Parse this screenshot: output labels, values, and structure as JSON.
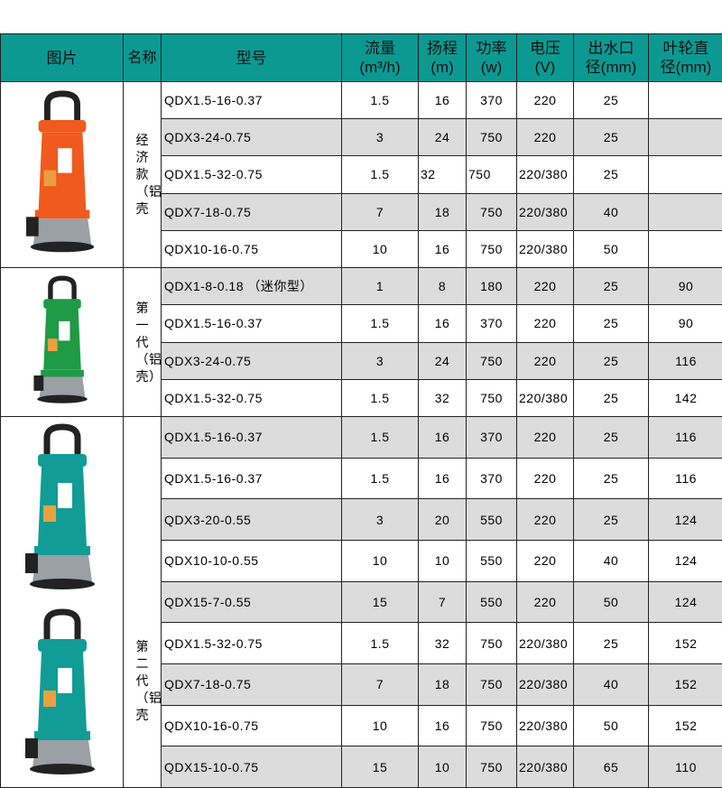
{
  "header": {
    "image": "图片",
    "name": "名称",
    "model": "型号",
    "flow": "流量",
    "flow_unit": "(m³/h)",
    "head": "扬程",
    "head_unit": "(m)",
    "power": "功率",
    "power_unit": "(w)",
    "voltage": "电压",
    "voltage_unit": "(V)",
    "outlet": "出水口",
    "outlet_unit": "径(mm)",
    "impeller": "叶轮直",
    "impeller_unit": "径(mm)"
  },
  "groups": [
    {
      "name": "经济款（铝壳",
      "pump_color": "#f05a1e",
      "rows": [
        [
          "QDX1.5-16-0.37",
          "1.5",
          "16",
          "370",
          "220",
          "25",
          ""
        ],
        [
          "QDX3-24-0.75",
          "3",
          "24",
          "750",
          "220",
          "25",
          ""
        ],
        [
          "QDX1.5-32-0.75",
          "1.5",
          "32",
          "750",
          "220/380",
          "25",
          ""
        ],
        [
          "QDX7-18-0.75",
          "7",
          "18",
          "750",
          "220/380",
          "40",
          ""
        ],
        [
          "QDX10-16-0.75",
          "10",
          "16",
          "750",
          "220/380",
          "50",
          ""
        ]
      ]
    },
    {
      "name": "第一代（铝壳）",
      "pump_color": "#1f9a45",
      "rows": [
        [
          "QDX1-8-0.18 （迷你型）",
          "1",
          "8",
          "180",
          "220",
          "25",
          "90"
        ],
        [
          "QDX1.5-16-0.37",
          "1.5",
          "16",
          "370",
          "220",
          "25",
          "90"
        ],
        [
          "QDX3-24-0.75",
          "3",
          "24",
          "750",
          "220",
          "25",
          "116"
        ],
        [
          "QDX1.5-32-0.75",
          "1.5",
          "32",
          "750",
          "220/380",
          "25",
          "142"
        ]
      ]
    },
    {
      "name": "第二代（铝壳",
      "pump_color": "#129c96",
      "rows": [
        [
          "QDX1.5-16-0.37",
          "1.5",
          "16",
          "370",
          "220",
          "25",
          "116"
        ],
        [
          "QDX1.5-16-0.37",
          "1.5",
          "16",
          "370",
          "220",
          "25",
          "116"
        ],
        [
          "QDX3-20-0.55",
          "3",
          "20",
          "550",
          "220",
          "25",
          "124"
        ],
        [
          "QDX10-10-0.55",
          "10",
          "10",
          "550",
          "220",
          "40",
          "124"
        ],
        [
          "QDX15-7-0.55",
          "15",
          "7",
          "550",
          "220",
          "50",
          "124"
        ],
        [
          "QDX1.5-32-0.75",
          "1.5",
          "32",
          "750",
          "220/380",
          "25",
          "152"
        ],
        [
          "QDX7-18-0.75",
          "7",
          "18",
          "750",
          "220/380",
          "40",
          "152"
        ],
        [
          "QDX10-16-0.75",
          "10",
          "16",
          "750",
          "220/380",
          "50",
          "152"
        ],
        [
          "QDX15-10-0.75",
          "15",
          "10",
          "750",
          "220/380",
          "65",
          "110"
        ]
      ]
    }
  ]
}
